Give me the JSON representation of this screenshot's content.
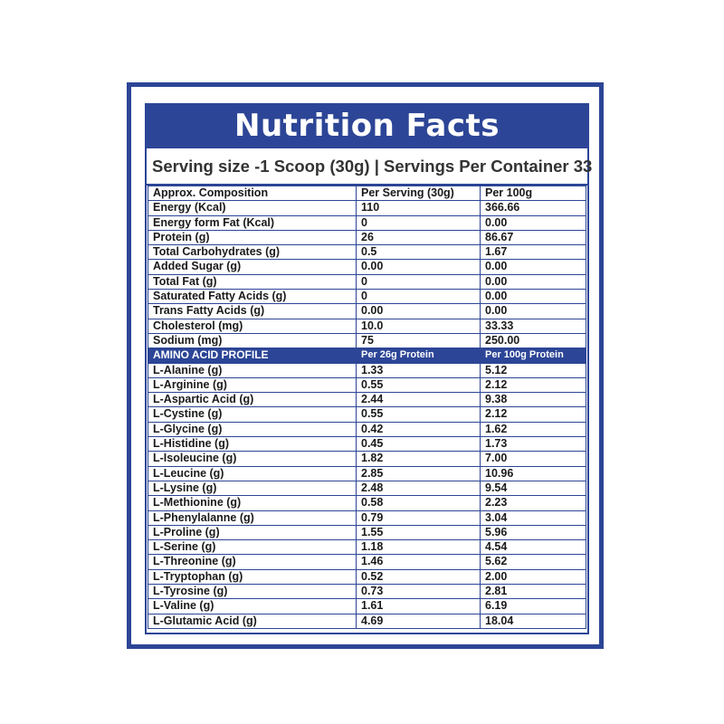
{
  "title": "Nutrition Facts",
  "serving_line": "Serving size -1 Scoop (30g)  |  Servings Per Container 33",
  "colors": {
    "accent": "#2c4596",
    "background": "#ffffff",
    "text": "#1a1a1a"
  },
  "composition": {
    "headers": [
      "Approx. Composition",
      "Per Serving  (30g)",
      "Per 100g"
    ],
    "rows": [
      [
        "Energy (Kcal)",
        "110",
        "366.66"
      ],
      [
        "Energy form Fat (Kcal)",
        "0",
        "0.00"
      ],
      [
        "Protein (g)",
        "26",
        "86.67"
      ],
      [
        "Total Carbohydrates (g)",
        "0.5",
        "1.67"
      ],
      [
        "Added Sugar (g)",
        "0.00",
        "0.00"
      ],
      [
        "Total Fat (g)",
        "0",
        "0.00"
      ],
      [
        "Saturated Fatty Acids (g)",
        "0",
        "0.00"
      ],
      [
        "Trans Fatty Acids (g)",
        "0.00",
        "0.00"
      ],
      [
        "Cholesterol (mg)",
        "10.0",
        "33.33"
      ],
      [
        "Sodium (mg)",
        "75",
        "250.00"
      ]
    ]
  },
  "amino": {
    "headers": [
      "AMINO ACID PROFILE",
      "Per 26g Protein",
      "Per 100g Protein"
    ],
    "rows": [
      [
        "L-Alanine (g)",
        "1.33",
        "5.12"
      ],
      [
        "L-Arginine (g)",
        "0.55",
        "2.12"
      ],
      [
        "L-Aspartic Acid (g)",
        "2.44",
        "9.38"
      ],
      [
        "L-Cystine (g)",
        "0.55",
        "2.12"
      ],
      [
        "L-Glycine (g)",
        "0.42",
        "1.62"
      ],
      [
        "L-Histidine (g)",
        "0.45",
        "1.73"
      ],
      [
        "L-Isoleucine (g)",
        "1.82",
        "7.00"
      ],
      [
        "L-Leucine (g)",
        "2.85",
        "10.96"
      ],
      [
        "L-Lysine (g)",
        "2.48",
        "9.54"
      ],
      [
        "L-Methionine (g)",
        "0.58",
        "2.23"
      ],
      [
        "L-Phenylalanne (g)",
        "0.79",
        "3.04"
      ],
      [
        "L-Proline (g)",
        "1.55",
        "5.96"
      ],
      [
        "L-Serine (g)",
        "1.18",
        "4.54"
      ],
      [
        "L-Threonine (g)",
        "1.46",
        "5.62"
      ],
      [
        "L-Tryptophan (g)",
        "0.52",
        "2.00"
      ],
      [
        "L-Tyrosine (g)",
        "0.73",
        "2.81"
      ],
      [
        "L-Valine (g)",
        "1.61",
        "6.19"
      ],
      [
        "L-Glutamic Acid (g)",
        "4.69",
        "18.04"
      ]
    ]
  }
}
